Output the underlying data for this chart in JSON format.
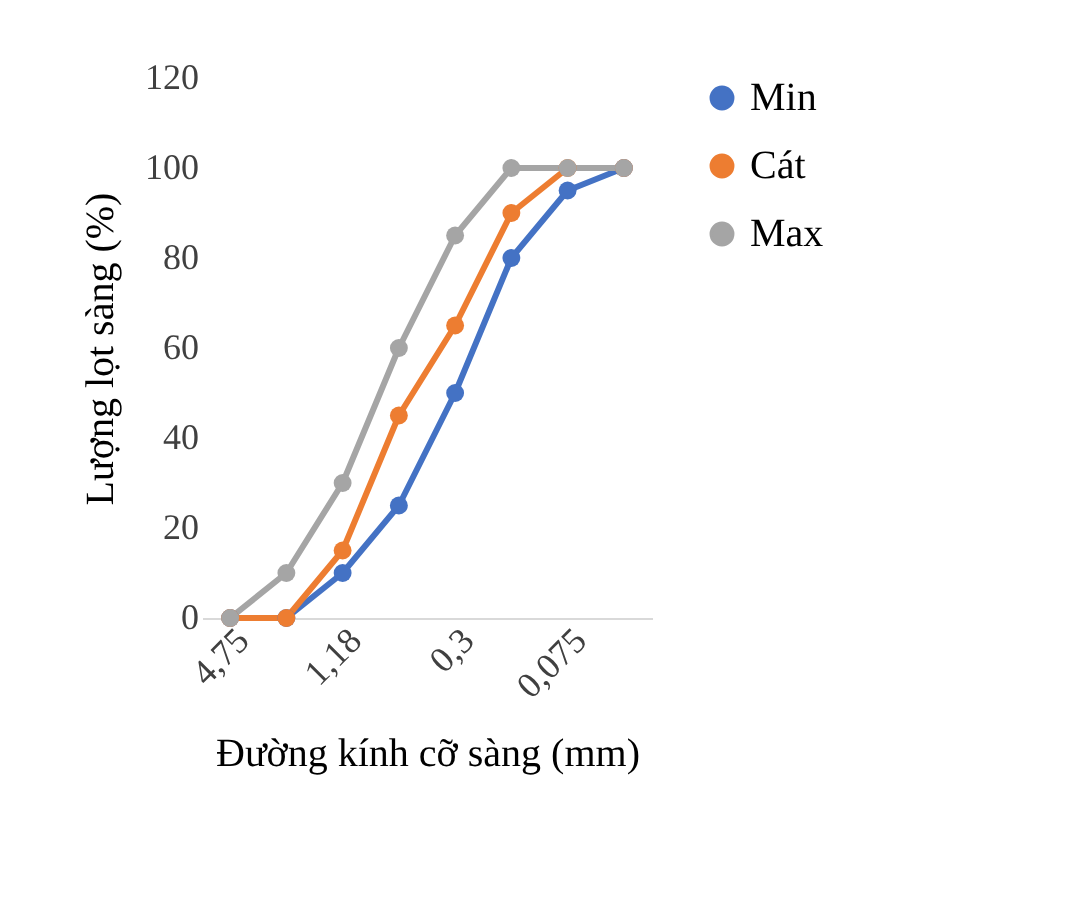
{
  "chart_data": {
    "type": "line",
    "xlabel": "Đường kính cỡ sàng (mm)",
    "ylabel": "Lượng lọt sàng (%)",
    "categories": [
      "4,75",
      null,
      "1,18",
      null,
      "0,3",
      null,
      "0,075",
      null
    ],
    "series": [
      {
        "name": "Min",
        "color": "#4472c4",
        "values": [
          0,
          0,
          10,
          25,
          50,
          80,
          95,
          100
        ]
      },
      {
        "name": "Cát",
        "color": "#ed7d31",
        "values": [
          0,
          0,
          15,
          45,
          65,
          90,
          100,
          100
        ]
      },
      {
        "name": "Max",
        "color": "#a5a5a5",
        "values": [
          0,
          10,
          30,
          60,
          85,
          100,
          100,
          100
        ]
      }
    ],
    "ylim": [
      0,
      120
    ],
    "yticks": [
      0,
      20,
      40,
      60,
      80,
      100,
      120
    ],
    "grid": false,
    "legend": "right",
    "marker": "circle",
    "line_style": "solid"
  }
}
